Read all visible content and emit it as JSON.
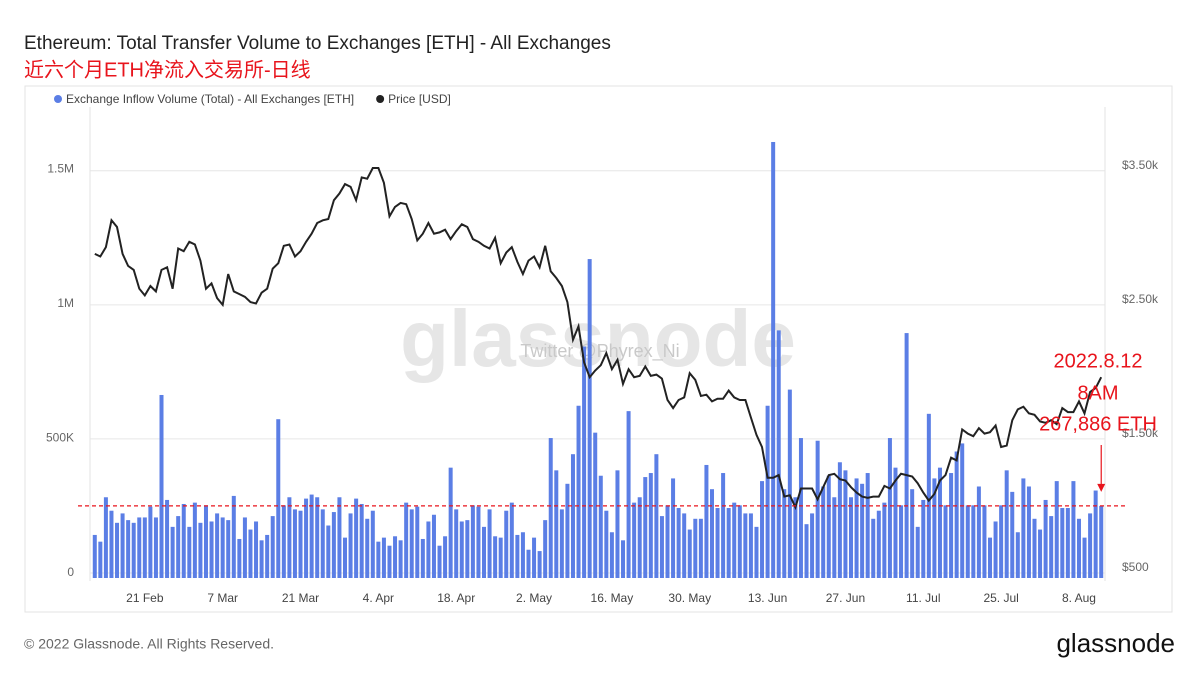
{
  "chart_data": {
    "type": "bar-line",
    "title": "Ethereum: Total Transfer Volume to Exchanges [ETH] - All Exchanges",
    "subtitle": "近六个月ETH净流入交易所-日线",
    "annotations": [
      "2022.8.12",
      "8AM",
      "267,886 ETH"
    ],
    "watermark": "glassnode",
    "watermark_note": "Twitter @Phyrex_Ni",
    "footer": "© 2022 Glassnode. All Rights Reserved.",
    "logo": "glassnode",
    "categories": [
      null,
      null,
      null,
      null,
      null,
      null,
      null,
      null,
      null,
      "21 Feb",
      null,
      null,
      null,
      null,
      null,
      null,
      null,
      null,
      null,
      null,
      null,
      null,
      null,
      "7 Mar",
      null,
      null,
      null,
      null,
      null,
      null,
      null,
      null,
      null,
      null,
      null,
      null,
      null,
      "21 Mar",
      null,
      null,
      null,
      null,
      null,
      null,
      null,
      null,
      null,
      null,
      null,
      null,
      null,
      "4. Apr",
      null,
      null,
      null,
      null,
      null,
      null,
      null,
      null,
      null,
      null,
      null,
      null,
      null,
      "18. Apr",
      null,
      null,
      null,
      null,
      null,
      null,
      null,
      null,
      null,
      null,
      null,
      null,
      null,
      "2. May",
      null,
      null,
      null,
      null,
      null,
      null,
      null,
      null,
      null,
      null,
      null,
      null,
      null,
      "16. May",
      null,
      null,
      null,
      null,
      null,
      null,
      null,
      null,
      null,
      null,
      null,
      null,
      null,
      "30. May",
      null,
      null,
      null,
      null,
      null,
      null,
      null,
      null,
      null,
      null,
      null,
      null,
      null,
      "13. Jun",
      null,
      null,
      null,
      null,
      null,
      null,
      null,
      null,
      null,
      null,
      null,
      null,
      null,
      "27. Jun",
      null,
      null,
      null,
      null,
      null,
      null,
      null,
      null,
      null,
      null,
      null,
      null,
      null,
      "11. Jul",
      null,
      null,
      null,
      null,
      null,
      null,
      null,
      null,
      null,
      null,
      null,
      null,
      null,
      "25. Jul",
      null,
      null,
      null,
      null,
      null,
      null,
      null,
      null,
      null,
      null,
      null,
      null,
      null,
      "8. Aug",
      null,
      null,
      null,
      null
    ],
    "series": [
      {
        "name": "Exchange Inflow Volume (Total) - All Exchanges [ETH]",
        "color": "#5b7ee5",
        "type": "bar",
        "values": [
          160000,
          135000,
          300000,
          250000,
          205000,
          240000,
          215000,
          205000,
          225000,
          225000,
          265000,
          225000,
          680000,
          290000,
          190000,
          230000,
          275000,
          190000,
          280000,
          205000,
          270000,
          210000,
          240000,
          225000,
          215000,
          305000,
          145000,
          225000,
          180000,
          210000,
          140000,
          160000,
          230000,
          590000,
          270000,
          300000,
          255000,
          250000,
          295000,
          310000,
          300000,
          255000,
          195000,
          245000,
          300000,
          150000,
          240000,
          295000,
          275000,
          220000,
          250000,
          135000,
          150000,
          120000,
          155000,
          140000,
          280000,
          255000,
          265000,
          145000,
          210000,
          235000,
          120000,
          155000,
          410000,
          255000,
          210000,
          215000,
          270000,
          265000,
          190000,
          255000,
          155000,
          150000,
          250000,
          280000,
          160000,
          170000,
          105000,
          150000,
          100000,
          215000,
          520000,
          400000,
          255000,
          350000,
          460000,
          640000,
          860000,
          1185000,
          540000,
          380000,
          250000,
          170000,
          400000,
          140000,
          620000,
          280000,
          300000,
          375000,
          390000,
          460000,
          230000,
          270000,
          370000,
          260000,
          240000,
          180000,
          220000,
          220000,
          420000,
          330000,
          260000,
          390000,
          260000,
          280000,
          270000,
          240000,
          240000,
          190000,
          360000,
          640000,
          1620000,
          920000,
          330000,
          700000,
          300000,
          520000,
          200000,
          240000,
          510000,
          340000,
          380000,
          300000,
          430000,
          400000,
          300000,
          370000,
          350000,
          390000,
          220000,
          250000,
          280000,
          520000,
          410000,
          270000,
          910000,
          330000,
          190000,
          290000,
          610000,
          370000,
          410000,
          270000,
          390000,
          470000,
          500000,
          270000,
          270000,
          340000,
          270000,
          150000,
          210000,
          270000,
          400000,
          320000,
          170000,
          370000,
          340000,
          220000,
          180000,
          290000,
          230000,
          360000,
          260000,
          260000,
          360000,
          220000,
          150000,
          240000,
          325000,
          267886
        ]
      },
      {
        "name": "Price [USD]",
        "color": "#222222",
        "type": "line",
        "axis": "y2",
        "values": [
          2880,
          2860,
          2930,
          3130,
          3080,
          2880,
          2790,
          2760,
          2620,
          2570,
          2640,
          2600,
          2760,
          2780,
          2620,
          2920,
          2900,
          2970,
          2950,
          2830,
          2620,
          2660,
          2550,
          2500,
          2730,
          2600,
          2580,
          2560,
          2520,
          2510,
          2590,
          2620,
          2770,
          2810,
          2940,
          2950,
          2860,
          2900,
          2970,
          3030,
          3110,
          3130,
          3140,
          3280,
          3330,
          3400,
          3380,
          3280,
          3450,
          3440,
          3520,
          3520,
          3410,
          3160,
          3230,
          3260,
          3250,
          3140,
          2980,
          3030,
          3110,
          3030,
          3040,
          3060,
          2990,
          3050,
          3100,
          3080,
          2990,
          2970,
          2940,
          2920,
          3000,
          2810,
          2890,
          2930,
          2820,
          2730,
          2830,
          2860,
          2780,
          2940,
          2750,
          2700,
          2640,
          2520,
          2240,
          2340,
          2070,
          1960,
          2010,
          2050,
          2140,
          2020,
          2090,
          1910,
          2020,
          1960,
          1970,
          2040,
          1970,
          1980,
          1950,
          1790,
          1730,
          1790,
          1810,
          1990,
          1940,
          1820,
          1830,
          1780,
          1800,
          1800,
          1860,
          1810,
          1790,
          1790,
          1660,
          1530,
          1440,
          1210,
          1210,
          1230,
          1070,
          1080,
          990,
          1130,
          1130,
          1130,
          1050,
          1140,
          1230,
          1240,
          1200,
          1190,
          1140,
          1100,
          1070,
          1060,
          1070,
          1070,
          1150,
          1130,
          1190,
          1240,
          1230,
          1220,
          1170,
          1100,
          1040,
          1090,
          1190,
          1230,
          1360,
          1340,
          1570,
          1540,
          1520,
          1580,
          1540,
          1550,
          1600,
          1440,
          1450,
          1640,
          1720,
          1740,
          1690,
          1680,
          1630,
          1620,
          1640,
          1610,
          1730,
          1700,
          1700,
          1780,
          1690,
          1850,
          1880,
          1960
        ]
      }
    ],
    "ylim": [
      0,
      1750000
    ],
    "yticks": [
      0,
      {
        "value": 500000,
        "label": "500K"
      },
      {
        "value": 1000000,
        "label": "1M"
      },
      {
        "value": 1500000,
        "label": "1.5M"
      }
    ],
    "y2lim": [
      463,
      3975
    ],
    "y2ticks": [
      {
        "value": 500,
        "label": "$500"
      },
      {
        "value": 1500,
        "label": "$1.50k"
      },
      {
        "value": 2500,
        "label": "$2.50k"
      },
      {
        "value": 3500,
        "label": "$3.50k"
      }
    ],
    "grid": true,
    "legend": "top-left",
    "reference_line_color": "#e8141c"
  }
}
